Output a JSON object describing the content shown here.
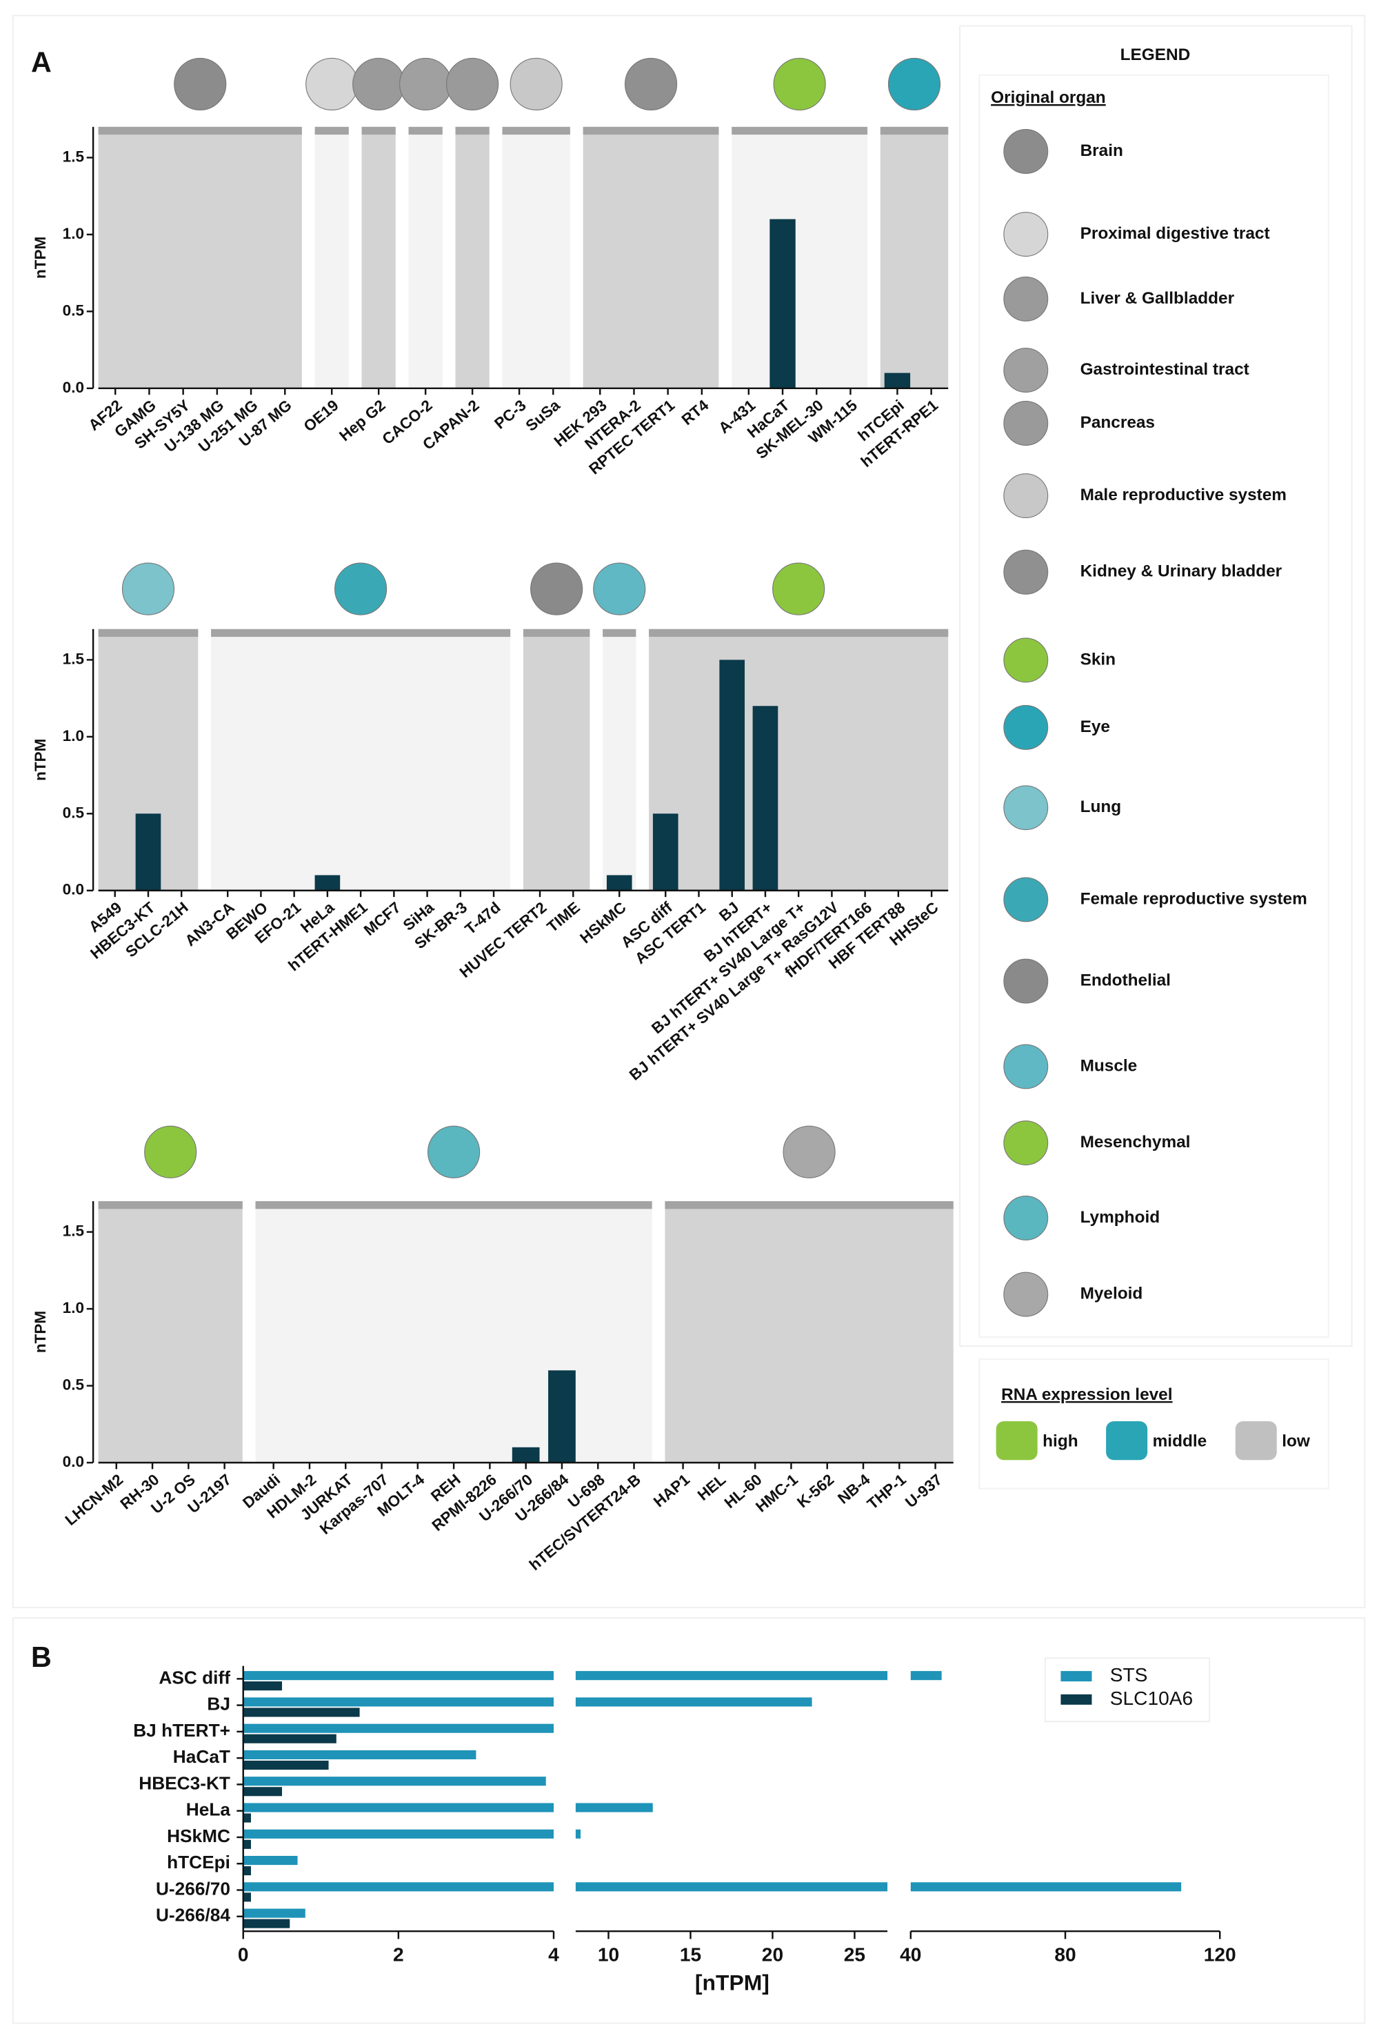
{
  "panel_labels": [
    "A",
    "B"
  ],
  "legend": {
    "title": "LEGEND",
    "organ_heading": "Original organ",
    "organs": [
      {
        "name": "Brain",
        "icon_color": "#8c8c8c"
      },
      {
        "name": "Proximal digestive tract",
        "icon_color": "#d6d6d6"
      },
      {
        "name": "Liver & Gallbladder",
        "icon_color": "#9a9a9a"
      },
      {
        "name": "Gastrointestinal tract",
        "icon_color": "#a0a0a0"
      },
      {
        "name": "Pancreas",
        "icon_color": "#9a9a9a"
      },
      {
        "name": "Male reproductive system",
        "icon_color": "#c8c8c8"
      },
      {
        "name": "Kidney & Urinary bladder",
        "icon_color": "#909090"
      },
      {
        "name": "Skin",
        "icon_color": "#8cc63f"
      },
      {
        "name": "Eye",
        "icon_color": "#2aa5b5"
      },
      {
        "name": "Lung",
        "icon_color": "#7cc3cc"
      },
      {
        "name": "Female reproductive system",
        "icon_color": "#3aa9b5"
      },
      {
        "name": "Endothelial",
        "icon_color": "#8a8a8a"
      },
      {
        "name": "Muscle",
        "icon_color": "#5fb8c4"
      },
      {
        "name": "Mesenchymal",
        "icon_color": "#8cc63f"
      },
      {
        "name": "Lymphoid",
        "icon_color": "#5ab6bf"
      },
      {
        "name": "Myeloid",
        "icon_color": "#a8a8a8"
      }
    ],
    "level_heading": "RNA expression level",
    "levels": [
      {
        "name": "high",
        "color": "#8cc63f"
      },
      {
        "name": "middle",
        "color": "#2aa5b5"
      },
      {
        "name": "low",
        "color": "#c0c0c0"
      }
    ]
  },
  "chart_data": [
    {
      "type": "bar",
      "ylabel": "nTPM",
      "ylim": [
        0,
        1.7
      ],
      "color": "#0b3a4a",
      "yticks": [
        {
          "value": 0,
          "label": "0.0"
        },
        {
          "value": 0.5,
          "label": "0.5"
        },
        {
          "value": 1,
          "label": "1.0"
        },
        {
          "value": 1.5,
          "label": "1.5"
        }
      ],
      "groups": [
        {
          "background": "#d3d3d3",
          "icon_color": "#8c8c8c",
          "categories": [
            "AF22",
            "GAMG",
            "SH-SY5Y",
            "U-138 MG",
            "U-251 MG",
            "U-87 MG"
          ],
          "values": [
            0,
            0,
            0,
            0,
            0,
            0
          ]
        },
        {
          "background": "#f3f3f3",
          "icon_color": "#d6d6d6",
          "categories": [
            "OE19"
          ],
          "values": [
            0
          ]
        },
        {
          "background": "#d3d3d3",
          "icon_color": "#9a9a9a",
          "categories": [
            "Hep G2"
          ],
          "values": [
            0
          ]
        },
        {
          "background": "#f3f3f3",
          "icon_color": "#a0a0a0",
          "categories": [
            "CACO-2"
          ],
          "values": [
            0
          ]
        },
        {
          "background": "#d3d3d3",
          "icon_color": "#9a9a9a",
          "categories": [
            "CAPAN-2"
          ],
          "values": [
            0
          ]
        },
        {
          "background": "#f3f3f3",
          "icon_color": "#c8c8c8",
          "categories": [
            "PC-3",
            "SuSa"
          ],
          "values": [
            0,
            0
          ]
        },
        {
          "background": "#d3d3d3",
          "icon_color": "#909090",
          "categories": [
            "HEK 293",
            "NTERA-2",
            "RPTEC TERT1",
            "RT4"
          ],
          "values": [
            0,
            0,
            0,
            0
          ]
        },
        {
          "background": "#f3f3f3",
          "icon_color": "#8cc63f",
          "categories": [
            "A-431",
            "HaCaT",
            "SK-MEL-30",
            "WM-115"
          ],
          "values": [
            0,
            1.1,
            0,
            0
          ]
        },
        {
          "background": "#d3d3d3",
          "icon_color": "#2aa5b5",
          "categories": [
            "hTCEpi",
            "hTERT-RPE1"
          ],
          "values": [
            0.1,
            0
          ]
        }
      ]
    },
    {
      "type": "bar",
      "ylabel": "nTPM",
      "ylim": [
        0,
        1.7
      ],
      "color": "#0b3a4a",
      "yticks": [
        {
          "value": 0,
          "label": "0.0"
        },
        {
          "value": 0.5,
          "label": "0.5"
        },
        {
          "value": 1,
          "label": "1.0"
        },
        {
          "value": 1.5,
          "label": "1.5"
        }
      ],
      "groups": [
        {
          "background": "#d3d3d3",
          "icon_color": "#7cc3cc",
          "categories": [
            "A549",
            "HBEC3-KT",
            "SCLC-21H"
          ],
          "values": [
            0,
            0.5,
            0
          ]
        },
        {
          "background": "#f3f3f3",
          "icon_color": "#3aa9b5",
          "categories": [
            "AN3-CA",
            "BEWO",
            "EFO-21",
            "HeLa",
            "hTERT-HME1",
            "MCF7",
            "SiHa",
            "SK-BR-3",
            "T-47d"
          ],
          "values": [
            0,
            0,
            0,
            0.1,
            0,
            0,
            0,
            0,
            0
          ]
        },
        {
          "background": "#d3d3d3",
          "icon_color": "#8a8a8a",
          "categories": [
            "HUVEC TERT2",
            "TIME"
          ],
          "values": [
            0,
            0
          ]
        },
        {
          "background": "#f3f3f3",
          "icon_color": "#5fb8c4",
          "categories": [
            "HSkMC"
          ],
          "values": [
            0.1
          ]
        },
        {
          "background": "#d3d3d3",
          "icon_color": "#8cc63f",
          "categories": [
            "ASC diff",
            "ASC TERT1",
            "BJ",
            "BJ hTERT+",
            "BJ hTERT+ SV40 Large T+",
            "BJ hTERT+ SV40 Large T+ RasG12V",
            "fHDF/TERT166",
            "HBF TERT88",
            "HHSteC"
          ],
          "values": [
            0.5,
            0,
            1.5,
            1.2,
            0,
            0,
            0,
            0,
            0
          ]
        }
      ]
    },
    {
      "type": "bar",
      "ylabel": "nTPM",
      "ylim": [
        0,
        1.7
      ],
      "color": "#0b3a4a",
      "yticks": [
        {
          "value": 0,
          "label": "0.0"
        },
        {
          "value": 0.5,
          "label": "0.5"
        },
        {
          "value": 1,
          "label": "1.0"
        },
        {
          "value": 1.5,
          "label": "1.5"
        }
      ],
      "groups": [
        {
          "background": "#d3d3d3",
          "icon_color": "#8cc63f",
          "categories": [
            "LHCN-M2",
            "RH-30",
            "U-2 OS",
            "U-2197"
          ],
          "values": [
            0,
            0,
            0,
            0
          ]
        },
        {
          "background": "#f3f3f3",
          "icon_color": "#5ab6bf",
          "categories": [
            "Daudi",
            "HDLM-2",
            "JURKAT",
            "Karpas-707",
            "MOLT-4",
            "REH",
            "RPMI-8226",
            "U-266/70",
            "U-266/84",
            "U-698",
            "hTEC/SVTERT24-B"
          ],
          "values": [
            0,
            0,
            0,
            0,
            0,
            0,
            0,
            0.1,
            0.6,
            0,
            0
          ]
        },
        {
          "background": "#d3d3d3",
          "icon_color": "#a8a8a8",
          "categories": [
            "HAP1",
            "HEL",
            "HL-60",
            "HMC-1",
            "K-562",
            "NB-4",
            "THP-1",
            "U-937"
          ],
          "values": [
            0,
            0,
            0,
            0,
            0,
            0,
            0,
            0
          ]
        }
      ]
    },
    {
      "type": "hbar",
      "xlabel": "[nTPM]",
      "xlim": [
        0,
        120
      ],
      "xbreaks": [
        [
          4,
          8
        ],
        [
          27,
          40
        ]
      ],
      "xticks": [
        0,
        2,
        4,
        10,
        15,
        20,
        25,
        40,
        80,
        120
      ],
      "legend": "upper right",
      "categories": [
        "ASC diff",
        "BJ",
        "BJ hTERT+",
        "HaCaT",
        "HBEC3-KT",
        "HeLa",
        "HSkMC",
        "hTCEpi",
        "U-266/70",
        "U-266/84"
      ],
      "series": [
        {
          "name": "STS",
          "color": "#1f93b8",
          "values": [
            48,
            22.4,
            4,
            3,
            3.9,
            12.7,
            8.3,
            0.7,
            110,
            0.8
          ]
        },
        {
          "name": "SLC10A6",
          "color": "#0b3a4a",
          "values": [
            0.5,
            1.5,
            1.2,
            1.1,
            0.5,
            0.1,
            0.1,
            0.1,
            0.1,
            0.6
          ]
        }
      ]
    }
  ]
}
